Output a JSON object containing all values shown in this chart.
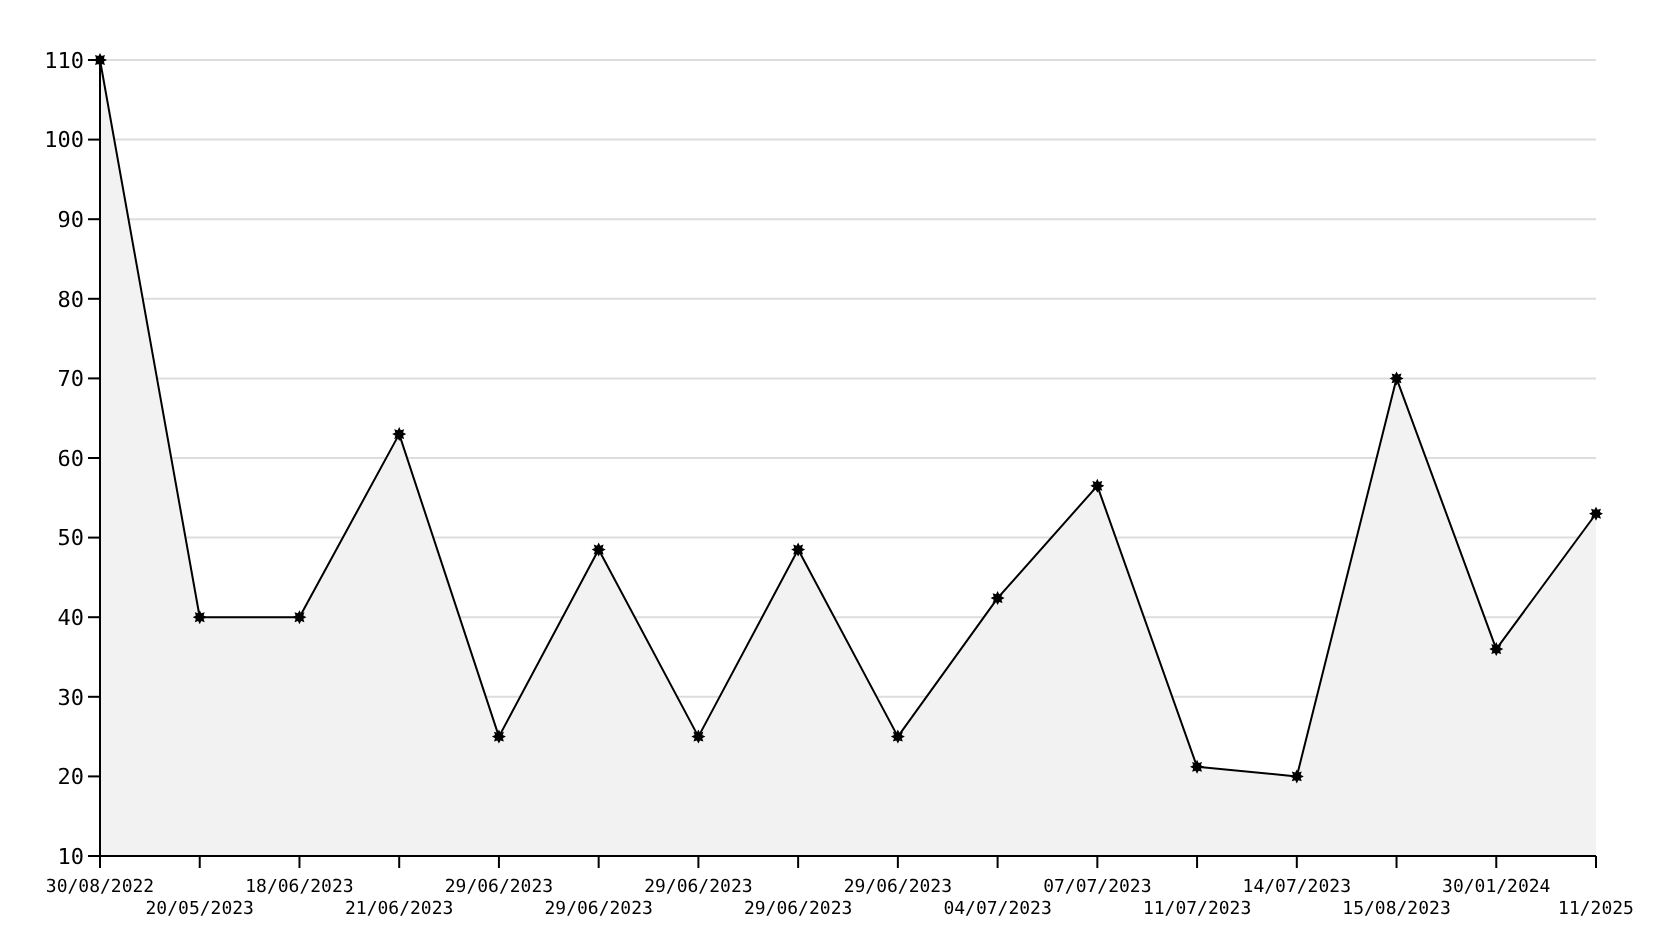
{
  "chart_data": {
    "type": "area",
    "categories": [
      "30/08/2022",
      "20/05/2023",
      "18/06/2023",
      "21/06/2023",
      "29/06/2023",
      "29/06/2023",
      "29/06/2023",
      "29/06/2023",
      "29/06/2023",
      "04/07/2023",
      "07/07/2023",
      "11/07/2023",
      "14/07/2023",
      "15/08/2023",
      "30/01/2024",
      "11/2025"
    ],
    "series": [
      {
        "color": "#000000",
        "values": [
          110,
          40,
          40,
          63,
          25,
          48.5,
          25,
          48.5,
          25,
          42.4,
          56.5,
          21.2,
          20,
          70,
          36,
          53
        ]
      }
    ],
    "ylim": [
      10,
      110
    ],
    "yticks": [
      10,
      20,
      30,
      40,
      50,
      60,
      70,
      80,
      90,
      100,
      110
    ],
    "grid": "y",
    "marker": "star",
    "line_style": "solid"
  }
}
